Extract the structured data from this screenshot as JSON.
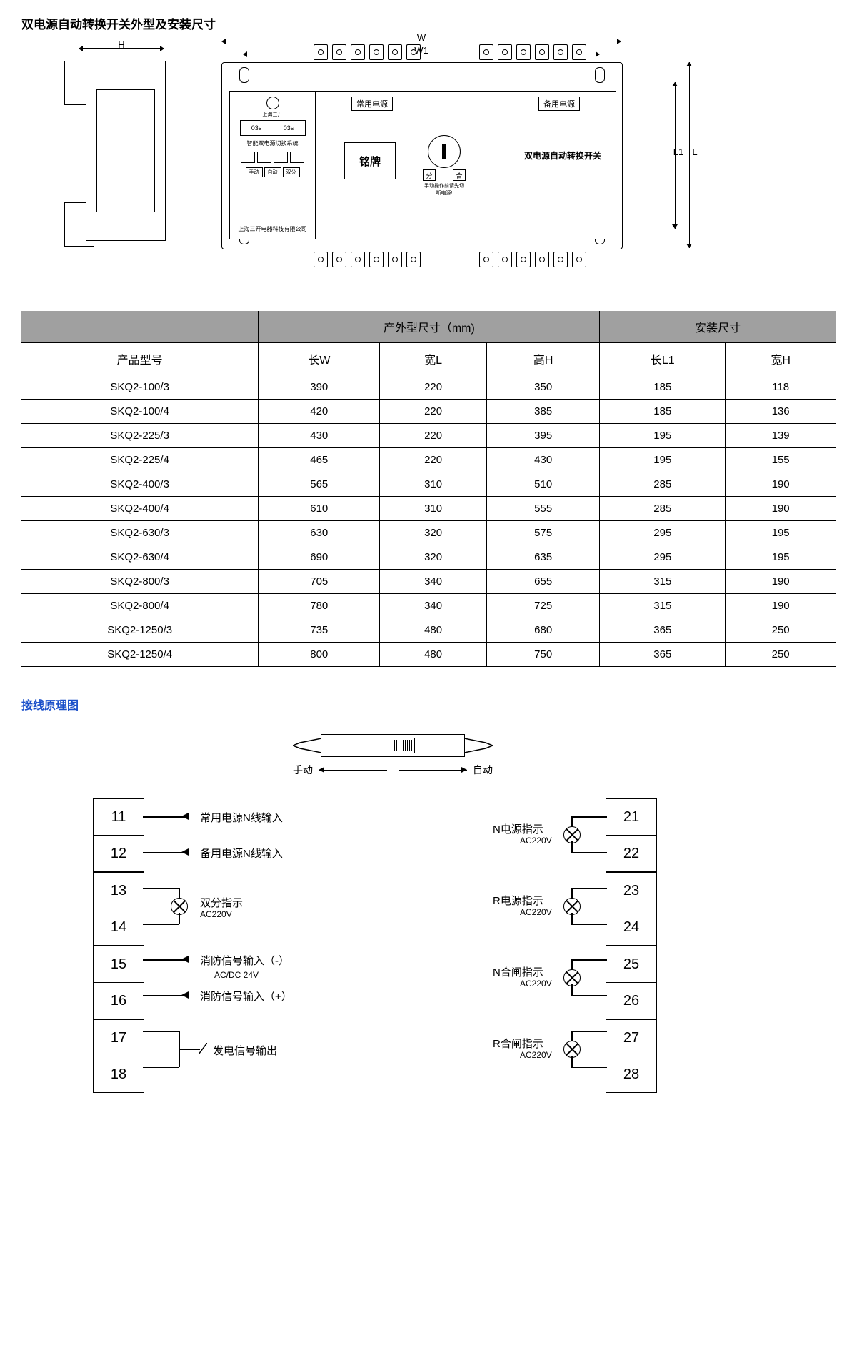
{
  "title": "双电源自动转换开关外型及安装尺寸",
  "dims": {
    "H": "H",
    "W": "W",
    "W1": "W1",
    "L": "L",
    "L1": "L1"
  },
  "device": {
    "logo_text": "上海三开",
    "display1": "03s",
    "display2": "03s",
    "subsystem": "智能双电源切换系统",
    "btns_icons": [
      "□",
      "□",
      "□",
      "□"
    ],
    "btns2": [
      "手动",
      "自动",
      "双分"
    ],
    "company": "上海三开电器科技有限公司",
    "normal_power": "常用电源",
    "backup_power": "备用电源",
    "nameplate": "铭牌",
    "sel_off": "分",
    "sel_on": "合",
    "sel_note": "手动操作前请先切断电源!",
    "switch_title": "双电源自动转换开关"
  },
  "table": {
    "header_groups": [
      "",
      "产外型尺寸（mm)",
      "安装尺寸"
    ],
    "columns": [
      "产品型号",
      "长W",
      "宽L",
      "高H",
      "长L1",
      "宽H"
    ],
    "rows": [
      [
        "SKQ2-100/3",
        "390",
        "220",
        "350",
        "185",
        "118"
      ],
      [
        "SKQ2-100/4",
        "420",
        "220",
        "385",
        "185",
        "136"
      ],
      [
        "SKQ2-225/3",
        "430",
        "220",
        "395",
        "195",
        "139"
      ],
      [
        "SKQ2-225/4",
        "465",
        "220",
        "430",
        "195",
        "155"
      ],
      [
        "SKQ2-400/3",
        "565",
        "310",
        "510",
        "285",
        "190"
      ],
      [
        "SKQ2-400/4",
        "610",
        "310",
        "555",
        "285",
        "190"
      ],
      [
        "SKQ2-630/3",
        "630",
        "320",
        "575",
        "295",
        "195"
      ],
      [
        "SKQ2-630/4",
        "690",
        "320",
        "635",
        "295",
        "195"
      ],
      [
        "SKQ2-800/3",
        "705",
        "340",
        "655",
        "315",
        "190"
      ],
      [
        "SKQ2-800/4",
        "780",
        "340",
        "725",
        "315",
        "190"
      ],
      [
        "SKQ2-1250/3",
        "735",
        "480",
        "680",
        "365",
        "250"
      ],
      [
        "SKQ2-1250/4",
        "800",
        "480",
        "750",
        "365",
        "250"
      ]
    ]
  },
  "section2_title": "接线原理图",
  "wiring": {
    "manual": "手动",
    "auto": "自动",
    "left_terms": [
      "11",
      "12",
      "13",
      "14",
      "15",
      "16",
      "17",
      "18"
    ],
    "right_terms": [
      "21",
      "22",
      "23",
      "24",
      "25",
      "26",
      "27",
      "28"
    ],
    "left_labels": {
      "l11": "常用电源N线输入",
      "l12": "备用电源N线输入",
      "l13_14": "双分指示",
      "l13_14_sub": "AC220V",
      "l15": "消防信号输入（-）",
      "l15_16_sub": "AC/DC 24V",
      "l16": "消防信号输入（+）",
      "l17_18": "发电信号输出"
    },
    "right_labels": {
      "r21_22": "N电源指示",
      "r21_22_sub": "AC220V",
      "r23_24": "R电源指示",
      "r23_24_sub": "AC220V",
      "r25_26": "N合闸指示",
      "r25_26_sub": "AC220V",
      "r27_28": "R合闸指示",
      "r27_28_sub": "AC220V"
    }
  },
  "styling": {
    "page_bg": "#ffffff",
    "text_color": "#000000",
    "title_fontsize": 17,
    "table_header_bg": "#a0a0a0",
    "table_fontsize": 15,
    "section2_color": "#1a4fc9",
    "line_color": "#000000",
    "term_fontsize": 20
  }
}
